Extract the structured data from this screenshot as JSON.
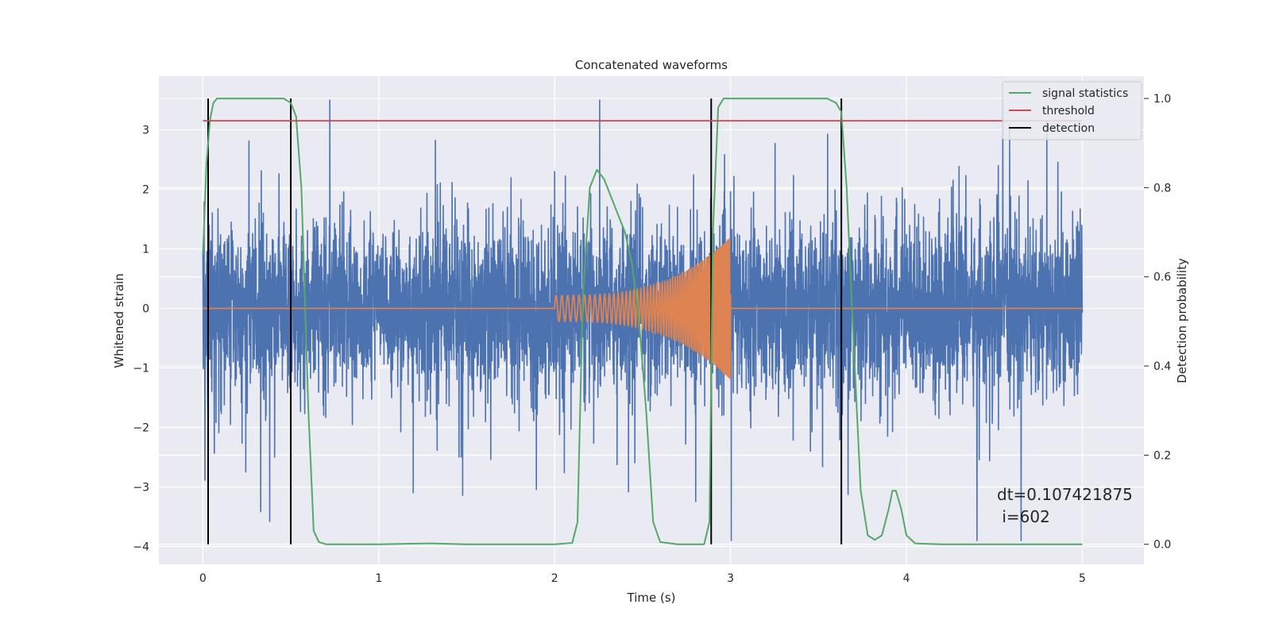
{
  "chart_data": {
    "type": "line",
    "title": "Concatenated waveforms",
    "xlabel": "Time (s)",
    "ylabel": "Whitened strain",
    "y2label": "Detection probability",
    "xlim": [
      -0.25,
      5.35
    ],
    "ylim": [
      -4.3,
      3.9
    ],
    "y2lim": [
      -0.045,
      1.05
    ],
    "x_ticks": [
      0,
      1,
      2,
      3,
      4,
      5
    ],
    "x_tick_labels": [
      "0",
      "1",
      "2",
      "3",
      "4",
      "5"
    ],
    "y_ticks": [
      -4,
      -3,
      -2,
      -1,
      0,
      1,
      2,
      3
    ],
    "y_tick_labels": [
      "−4",
      "−3",
      "−2",
      "−1",
      "0",
      "1",
      "2",
      "3"
    ],
    "y2_ticks": [
      0.0,
      0.2,
      0.4,
      0.6,
      0.8,
      1.0
    ],
    "y2_tick_labels": [
      "0.0",
      "0.2",
      "0.4",
      "0.6",
      "0.8",
      "1.0"
    ],
    "grid": true,
    "legend_position": "upper right",
    "colors": {
      "strain": "#4c72b0",
      "injection": "#dd8452",
      "signal_statistics": "#55a868",
      "threshold": "#c44e52",
      "detection": "#000000",
      "plot_background": "#eaeaf2",
      "grid": "#ffffff"
    },
    "series": [
      {
        "name": "",
        "axis": "left",
        "kind": "noise",
        "x_range": [
          0,
          5
        ],
        "std": 0.9,
        "peak_max": 3.5,
        "peak_min": -3.9
      },
      {
        "name": "",
        "axis": "left",
        "kind": "chirp",
        "x_range": [
          0,
          5
        ],
        "chirp_start": 2.0,
        "chirp_end": 3.0,
        "amplitude_start": 0.22,
        "amplitude_end": 1.2,
        "frequency_start": 30,
        "frequency_end": 120
      },
      {
        "name": "signal statistics",
        "axis": "right",
        "x": [
          0.0,
          0.02,
          0.04,
          0.06,
          0.08,
          0.1,
          0.2,
          0.3,
          0.4,
          0.46,
          0.5,
          0.53,
          0.56,
          0.6,
          0.63,
          0.66,
          0.7,
          1.0,
          1.3,
          1.5,
          2.0,
          2.1,
          2.13,
          2.16,
          2.2,
          2.24,
          2.28,
          2.32,
          2.36,
          2.4,
          2.44,
          2.48,
          2.52,
          2.56,
          2.6,
          2.7,
          2.8,
          2.85,
          2.88,
          2.9,
          2.93,
          2.96,
          3.0,
          3.3,
          3.55,
          3.6,
          3.63,
          3.66,
          3.7,
          3.74,
          3.78,
          3.82,
          3.86,
          3.9,
          3.92,
          3.94,
          3.97,
          4.0,
          4.05,
          4.2,
          4.6,
          5.0
        ],
        "values": [
          0.65,
          0.85,
          0.95,
          0.99,
          1.0,
          1.0,
          1.0,
          1.0,
          1.0,
          1.0,
          0.99,
          0.96,
          0.8,
          0.3,
          0.03,
          0.005,
          0.0,
          0.0,
          0.002,
          0.0,
          0.0,
          0.003,
          0.05,
          0.55,
          0.8,
          0.84,
          0.82,
          0.78,
          0.74,
          0.7,
          0.63,
          0.5,
          0.3,
          0.05,
          0.005,
          0.0,
          0.0,
          0.0,
          0.05,
          0.7,
          0.98,
          1.0,
          1.0,
          1.0,
          1.0,
          0.99,
          0.97,
          0.8,
          0.45,
          0.12,
          0.02,
          0.01,
          0.02,
          0.08,
          0.12,
          0.12,
          0.08,
          0.02,
          0.002,
          0.0,
          0.0,
          0.0
        ]
      },
      {
        "name": "threshold",
        "axis": "right",
        "x": [
          0,
          5
        ],
        "values": [
          0.95,
          0.95
        ]
      },
      {
        "name": "detection",
        "axis": "right",
        "kind": "vlines",
        "x": [
          0.03,
          0.5,
          2.89,
          3.63
        ],
        "y_range": [
          0.0,
          1.0
        ]
      }
    ],
    "annotation": {
      "line1": "dt=0.107421875",
      "line2": " i=602"
    }
  }
}
